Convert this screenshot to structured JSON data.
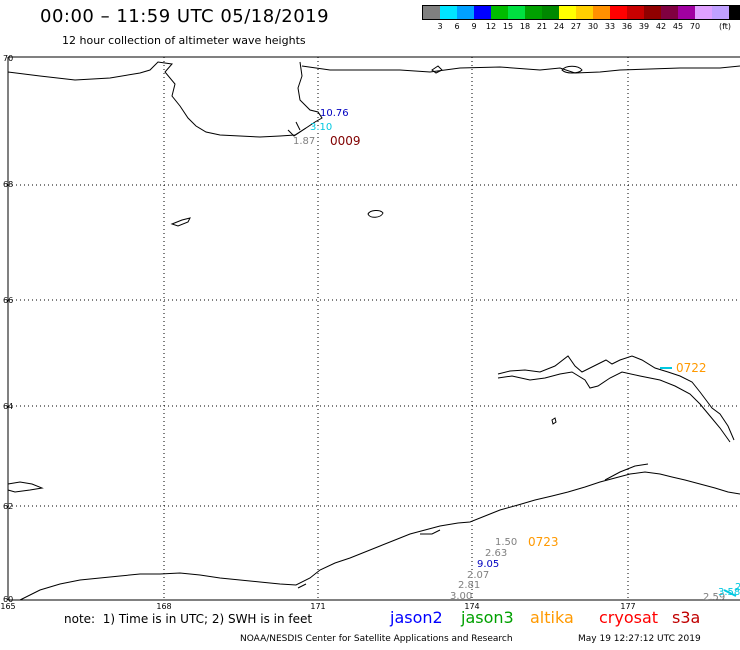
{
  "header": {
    "title": "00:00 – 11:59 UTC 05/18/2019",
    "subtitle": "12 hour collection of altimeter wave heights"
  },
  "legend": {
    "unit": "(ft)",
    "colors": [
      "#808080",
      "#00e5ff",
      "#00a0ff",
      "#0000ff",
      "#00bb00",
      "#00e040",
      "#00a000",
      "#008800",
      "#ffff00",
      "#ffd000",
      "#ff9000",
      "#ff0000",
      "#c80000",
      "#900000",
      "#800040",
      "#a000a0",
      "#e0a0ff",
      "#c0a0ff",
      "#000000"
    ],
    "labels": [
      "3",
      "6",
      "9",
      "12",
      "15",
      "18",
      "21",
      "24",
      "27",
      "30",
      "33",
      "36",
      "39",
      "42",
      "45",
      "70"
    ]
  },
  "map": {
    "lat_labels": [
      "70",
      "68",
      "66",
      "64",
      "62",
      "60"
    ],
    "lon_labels": [
      "165",
      "168",
      "171",
      "174",
      "177"
    ],
    "observations": [
      {
        "value": "10.76",
        "color": "#0000c0"
      },
      {
        "value": "3.10",
        "color": "#00c8e0"
      },
      {
        "value": "1.87",
        "color": "#808080"
      },
      {
        "value": "1.50",
        "color": "#808080"
      },
      {
        "value": "2.63",
        "color": "#808080"
      },
      {
        "value": "9.05",
        "color": "#0000c0"
      },
      {
        "value": "2.07",
        "color": "#808080"
      },
      {
        "value": "2.81",
        "color": "#808080"
      },
      {
        "value": "3.00",
        "color": "#808080"
      },
      {
        "value": "2.59",
        "color": "#808080"
      },
      {
        "value": "3.58",
        "color": "#00c8e0"
      },
      {
        "value": "2",
        "color": "#00c8e0"
      }
    ],
    "times": [
      {
        "value": "0009",
        "color": "#800000"
      },
      {
        "value": "0722",
        "color": "#ff9900"
      },
      {
        "value": "0723",
        "color": "#ff9900"
      }
    ]
  },
  "footer": {
    "note": "note:  1) Time is in UTC; 2) SWH is in feet",
    "satellites": [
      {
        "name": "jason2",
        "color": "#0000ff"
      },
      {
        "name": "jason3",
        "color": "#00a000"
      },
      {
        "name": "altika",
        "color": "#ff9900"
      },
      {
        "name": "cryosat",
        "color": "#ff0000"
      },
      {
        "name": "s3a",
        "color": "#c00000"
      }
    ],
    "credit": "NOAA/NESDIS Center for Satellite Applications and Research",
    "timestamp": "May 19 12:27:12 UTC 2019"
  }
}
